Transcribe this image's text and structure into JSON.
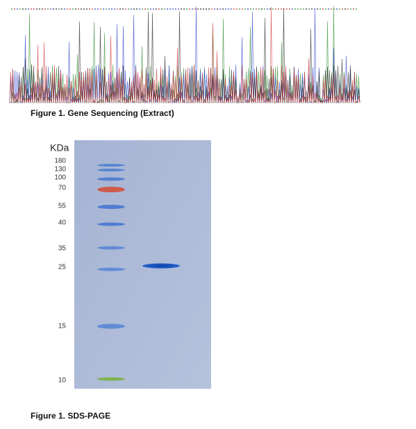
{
  "figure_sequencing": {
    "caption": "Figure 1. Gene Sequencing (Extract)"
  },
  "figure_gel": {
    "caption": "Figure 1. SDS-PAGE",
    "unit_label": "KDa",
    "marker_labels": [
      "180",
      "130",
      "100",
      "70",
      "55",
      "40",
      "35",
      "25",
      "15",
      "10"
    ]
  }
}
